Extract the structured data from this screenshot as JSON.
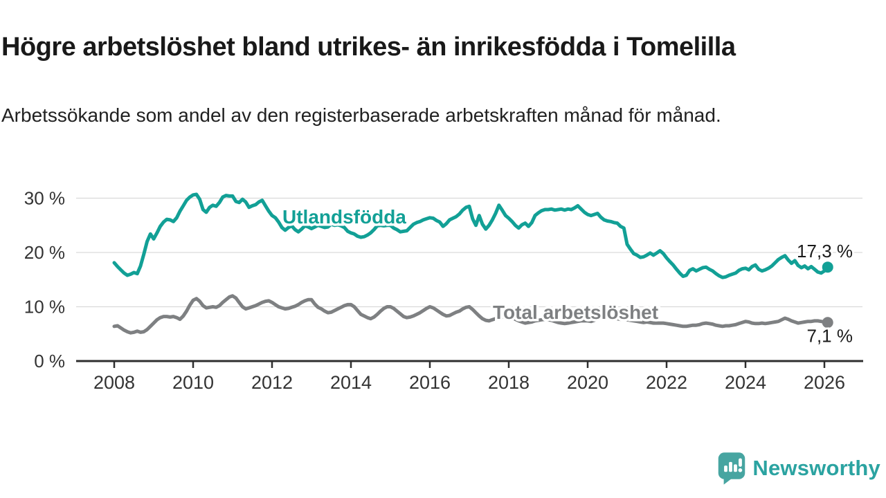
{
  "header": {
    "title": "Högre arbetslöshet bland utrikes- än inrikesfödda i Tomelilla",
    "subtitle": "Arbetssökande som andel av den registerbaserade arbetskraften månad för månad."
  },
  "chart_data": {
    "type": "line",
    "unit": "%",
    "x_start": "2008-01",
    "x_end": "2026-02",
    "x_tick_years": [
      2008,
      2010,
      2012,
      2014,
      2016,
      2018,
      2020,
      2022,
      2024,
      2026
    ],
    "y_ticks": [
      {
        "value": 0,
        "label": "0 %"
      },
      {
        "value": 10,
        "label": "10 %"
      },
      {
        "value": 20,
        "label": "20 %"
      },
      {
        "value": 30,
        "label": "30 %"
      }
    ],
    "ylim": [
      0,
      32
    ],
    "grid": true,
    "legend": "inline-labels",
    "series": [
      {
        "name": "Utlandsfödda",
        "color": "#12a096",
        "end_label": "17,3 %",
        "values": [
          18.1,
          17.4,
          16.8,
          16.2,
          15.8,
          16.0,
          16.3,
          16.1,
          17.5,
          19.7,
          22.0,
          23.4,
          22.5,
          23.6,
          24.8,
          25.6,
          26.1,
          26.0,
          25.7,
          26.4,
          27.6,
          28.6,
          29.6,
          30.2,
          30.6,
          30.7,
          29.8,
          27.9,
          27.4,
          28.3,
          28.7,
          28.5,
          29.2,
          30.2,
          30.5,
          30.4,
          30.4,
          29.4,
          29.2,
          29.8,
          29.3,
          28.3,
          28.6,
          28.8,
          29.3,
          29.6,
          28.6,
          27.6,
          26.8,
          26.4,
          25.6,
          24.6,
          24.1,
          24.6,
          24.9,
          24.2,
          23.8,
          24.3,
          24.9,
          24.7,
          24.4,
          24.7,
          25.0,
          24.8,
          24.6,
          24.7,
          25.2,
          25.0,
          25.1,
          24.9,
          24.6,
          23.9,
          23.6,
          23.4,
          23.0,
          22.8,
          22.9,
          23.2,
          23.6,
          24.2,
          24.9,
          25.0,
          24.9,
          25.0,
          25.0,
          24.5,
          24.2,
          23.8,
          23.9,
          24.0,
          24.6,
          25.2,
          25.5,
          25.7,
          26.0,
          26.2,
          26.4,
          26.3,
          25.9,
          25.6,
          24.8,
          25.3,
          26.0,
          26.3,
          26.6,
          27.1,
          27.8,
          28.3,
          28.5,
          26.2,
          25.0,
          26.8,
          25.2,
          24.3,
          25.0,
          26.0,
          27.2,
          28.7,
          27.8,
          26.8,
          26.3,
          25.7,
          25.0,
          24.5,
          25.1,
          25.4,
          24.8,
          25.5,
          26.8,
          27.3,
          27.7,
          27.9,
          27.9,
          28.0,
          27.8,
          27.9,
          28.0,
          27.8,
          28.0,
          27.9,
          28.2,
          28.6,
          28.0,
          27.4,
          27.0,
          26.8,
          27.0,
          27.2,
          26.5,
          26.0,
          25.8,
          25.7,
          25.5,
          25.4,
          24.8,
          24.5,
          21.5,
          20.6,
          19.8,
          19.5,
          19.1,
          19.2,
          19.5,
          19.9,
          19.5,
          19.9,
          20.3,
          19.8,
          19.0,
          18.3,
          17.7,
          16.9,
          16.2,
          15.6,
          15.8,
          16.7,
          17.0,
          16.6,
          16.9,
          17.2,
          17.3,
          16.9,
          16.6,
          16.1,
          15.7,
          15.4,
          15.5,
          15.8,
          16.0,
          16.2,
          16.7,
          17.0,
          17.1,
          16.8,
          17.4,
          17.7,
          16.9,
          16.6,
          16.8,
          17.1,
          17.5,
          18.1,
          18.7,
          19.1,
          19.4,
          18.6,
          18.0,
          18.5,
          17.6,
          17.2,
          17.5,
          17.0,
          17.4,
          16.9,
          16.4,
          16.2,
          16.6,
          17.3
        ]
      },
      {
        "name": "Total arbetslöshet",
        "color": "#7e8082",
        "end_label": "7,1 %",
        "values": [
          6.4,
          6.5,
          6.1,
          5.7,
          5.4,
          5.2,
          5.3,
          5.5,
          5.3,
          5.4,
          5.8,
          6.4,
          7.0,
          7.6,
          8.0,
          8.2,
          8.2,
          8.1,
          8.2,
          8.0,
          7.7,
          8.3,
          9.2,
          10.3,
          11.2,
          11.5,
          11.0,
          10.2,
          9.8,
          9.9,
          10.0,
          9.9,
          10.2,
          10.8,
          11.3,
          11.8,
          12.0,
          11.6,
          10.8,
          10.0,
          9.6,
          9.8,
          10.0,
          10.2,
          10.5,
          10.8,
          11.0,
          11.1,
          10.8,
          10.4,
          10.0,
          9.8,
          9.6,
          9.7,
          9.9,
          10.1,
          10.4,
          10.8,
          11.1,
          11.3,
          11.3,
          10.5,
          9.9,
          9.6,
          9.2,
          8.9,
          9.0,
          9.3,
          9.6,
          9.9,
          10.2,
          10.4,
          10.4,
          10.0,
          9.3,
          8.6,
          8.3,
          8.0,
          7.8,
          8.1,
          8.6,
          9.2,
          9.7,
          10.0,
          10.0,
          9.7,
          9.2,
          8.7,
          8.2,
          8.0,
          8.1,
          8.3,
          8.6,
          8.9,
          9.3,
          9.7,
          10.0,
          9.8,
          9.4,
          9.0,
          8.6,
          8.3,
          8.4,
          8.7,
          9.0,
          9.2,
          9.6,
          9.9,
          10.0,
          9.5,
          8.9,
          8.3,
          7.8,
          7.5,
          7.4,
          7.6,
          7.8,
          7.9,
          8.1,
          8.3,
          8.3,
          8.0,
          7.7,
          7.4,
          7.2,
          7.0,
          7.1,
          7.2,
          7.4,
          7.5,
          7.6,
          7.7,
          7.6,
          7.5,
          7.3,
          7.1,
          7.0,
          6.9,
          7.0,
          7.1,
          7.2,
          7.3,
          7.4,
          7.4,
          7.4,
          7.3,
          7.5,
          7.9,
          8.1,
          8.2,
          8.1,
          8.0,
          7.9,
          7.8,
          7.7,
          7.7,
          7.6,
          7.5,
          7.4,
          7.3,
          7.2,
          7.1,
          7.2,
          7.1,
          7.0,
          7.0,
          7.0,
          7.0,
          6.9,
          6.8,
          6.7,
          6.6,
          6.5,
          6.4,
          6.4,
          6.5,
          6.6,
          6.6,
          6.7,
          6.9,
          7.0,
          6.9,
          6.8,
          6.6,
          6.5,
          6.4,
          6.5,
          6.5,
          6.6,
          6.7,
          6.9,
          7.1,
          7.3,
          7.2,
          7.0,
          6.9,
          6.9,
          7.0,
          6.9,
          7.0,
          7.1,
          7.2,
          7.3,
          7.6,
          7.9,
          7.7,
          7.4,
          7.2,
          7.0,
          7.1,
          7.2,
          7.3,
          7.3,
          7.4,
          7.4,
          7.3,
          7.2,
          7.1
        ]
      }
    ]
  },
  "branding": {
    "logo_text": "Newsworthy",
    "logo_icon": "speech-bubble-bar-chart-icon",
    "logo_color": "#2ba3a1"
  }
}
